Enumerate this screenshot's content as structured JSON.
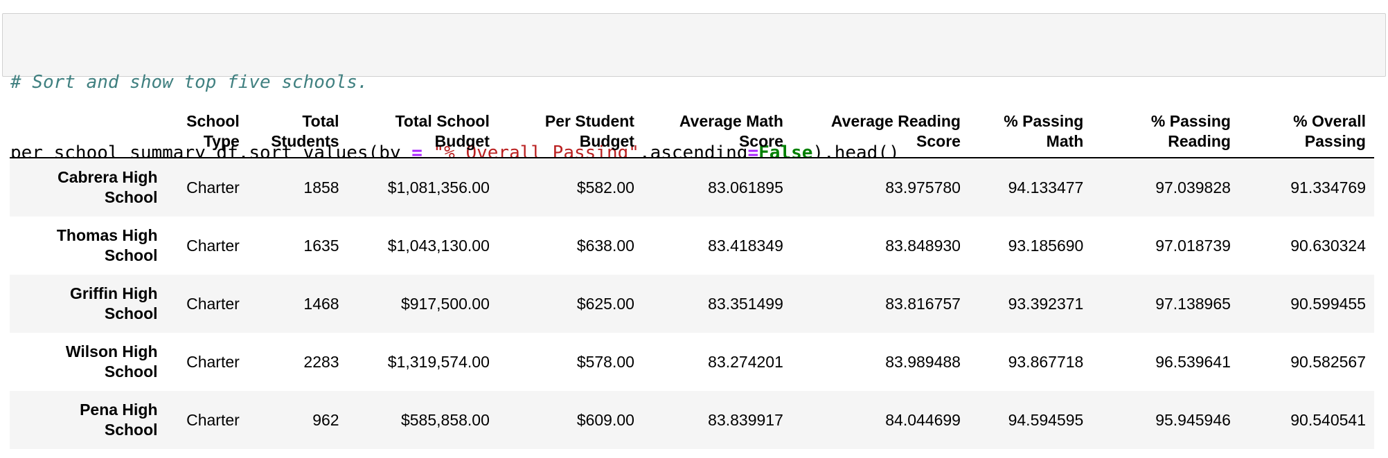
{
  "code_cell": {
    "comment": "# Sort and show top five schools.",
    "call_prefix": "per_school_summary_df.sort_values(by ",
    "assign_op": "=",
    "string_arg": "\"% Overall Passing\"",
    "kwarg_name": ",ascending",
    "assign_op_2": "=",
    "kwarg_value": "False",
    "call_suffix": ").head()"
  },
  "table": {
    "columns": [
      [
        "School",
        "Type"
      ],
      [
        "Total",
        "Students"
      ],
      [
        "Total School",
        "Budget"
      ],
      [
        "Per Student",
        "Budget"
      ],
      [
        "Average Math",
        "Score"
      ],
      [
        "Average Reading",
        "Score"
      ],
      [
        "% Passing",
        "Math"
      ],
      [
        "% Passing",
        "Reading"
      ],
      [
        "% Overall",
        "Passing"
      ]
    ],
    "rows": [
      {
        "index": [
          "Cabrera High",
          "School"
        ],
        "cells": [
          "Charter",
          "1858",
          "$1,081,356.00",
          "$582.00",
          "83.061895",
          "83.975780",
          "94.133477",
          "97.039828",
          "91.334769"
        ]
      },
      {
        "index": [
          "Thomas High",
          "School"
        ],
        "cells": [
          "Charter",
          "1635",
          "$1,043,130.00",
          "$638.00",
          "83.418349",
          "83.848930",
          "93.185690",
          "97.018739",
          "90.630324"
        ]
      },
      {
        "index": [
          "Griffin High",
          "School"
        ],
        "cells": [
          "Charter",
          "1468",
          "$917,500.00",
          "$625.00",
          "83.351499",
          "83.816757",
          "93.392371",
          "97.138965",
          "90.599455"
        ]
      },
      {
        "index": [
          "Wilson High",
          "School"
        ],
        "cells": [
          "Charter",
          "2283",
          "$1,319,574.00",
          "$578.00",
          "83.274201",
          "83.989488",
          "93.867718",
          "96.539641",
          "90.582567"
        ]
      },
      {
        "index": [
          "Pena High",
          "School"
        ],
        "cells": [
          "Charter",
          "962",
          "$585,858.00",
          "$609.00",
          "83.839917",
          "84.044699",
          "94.594595",
          "95.945946",
          "90.540541"
        ]
      }
    ]
  }
}
